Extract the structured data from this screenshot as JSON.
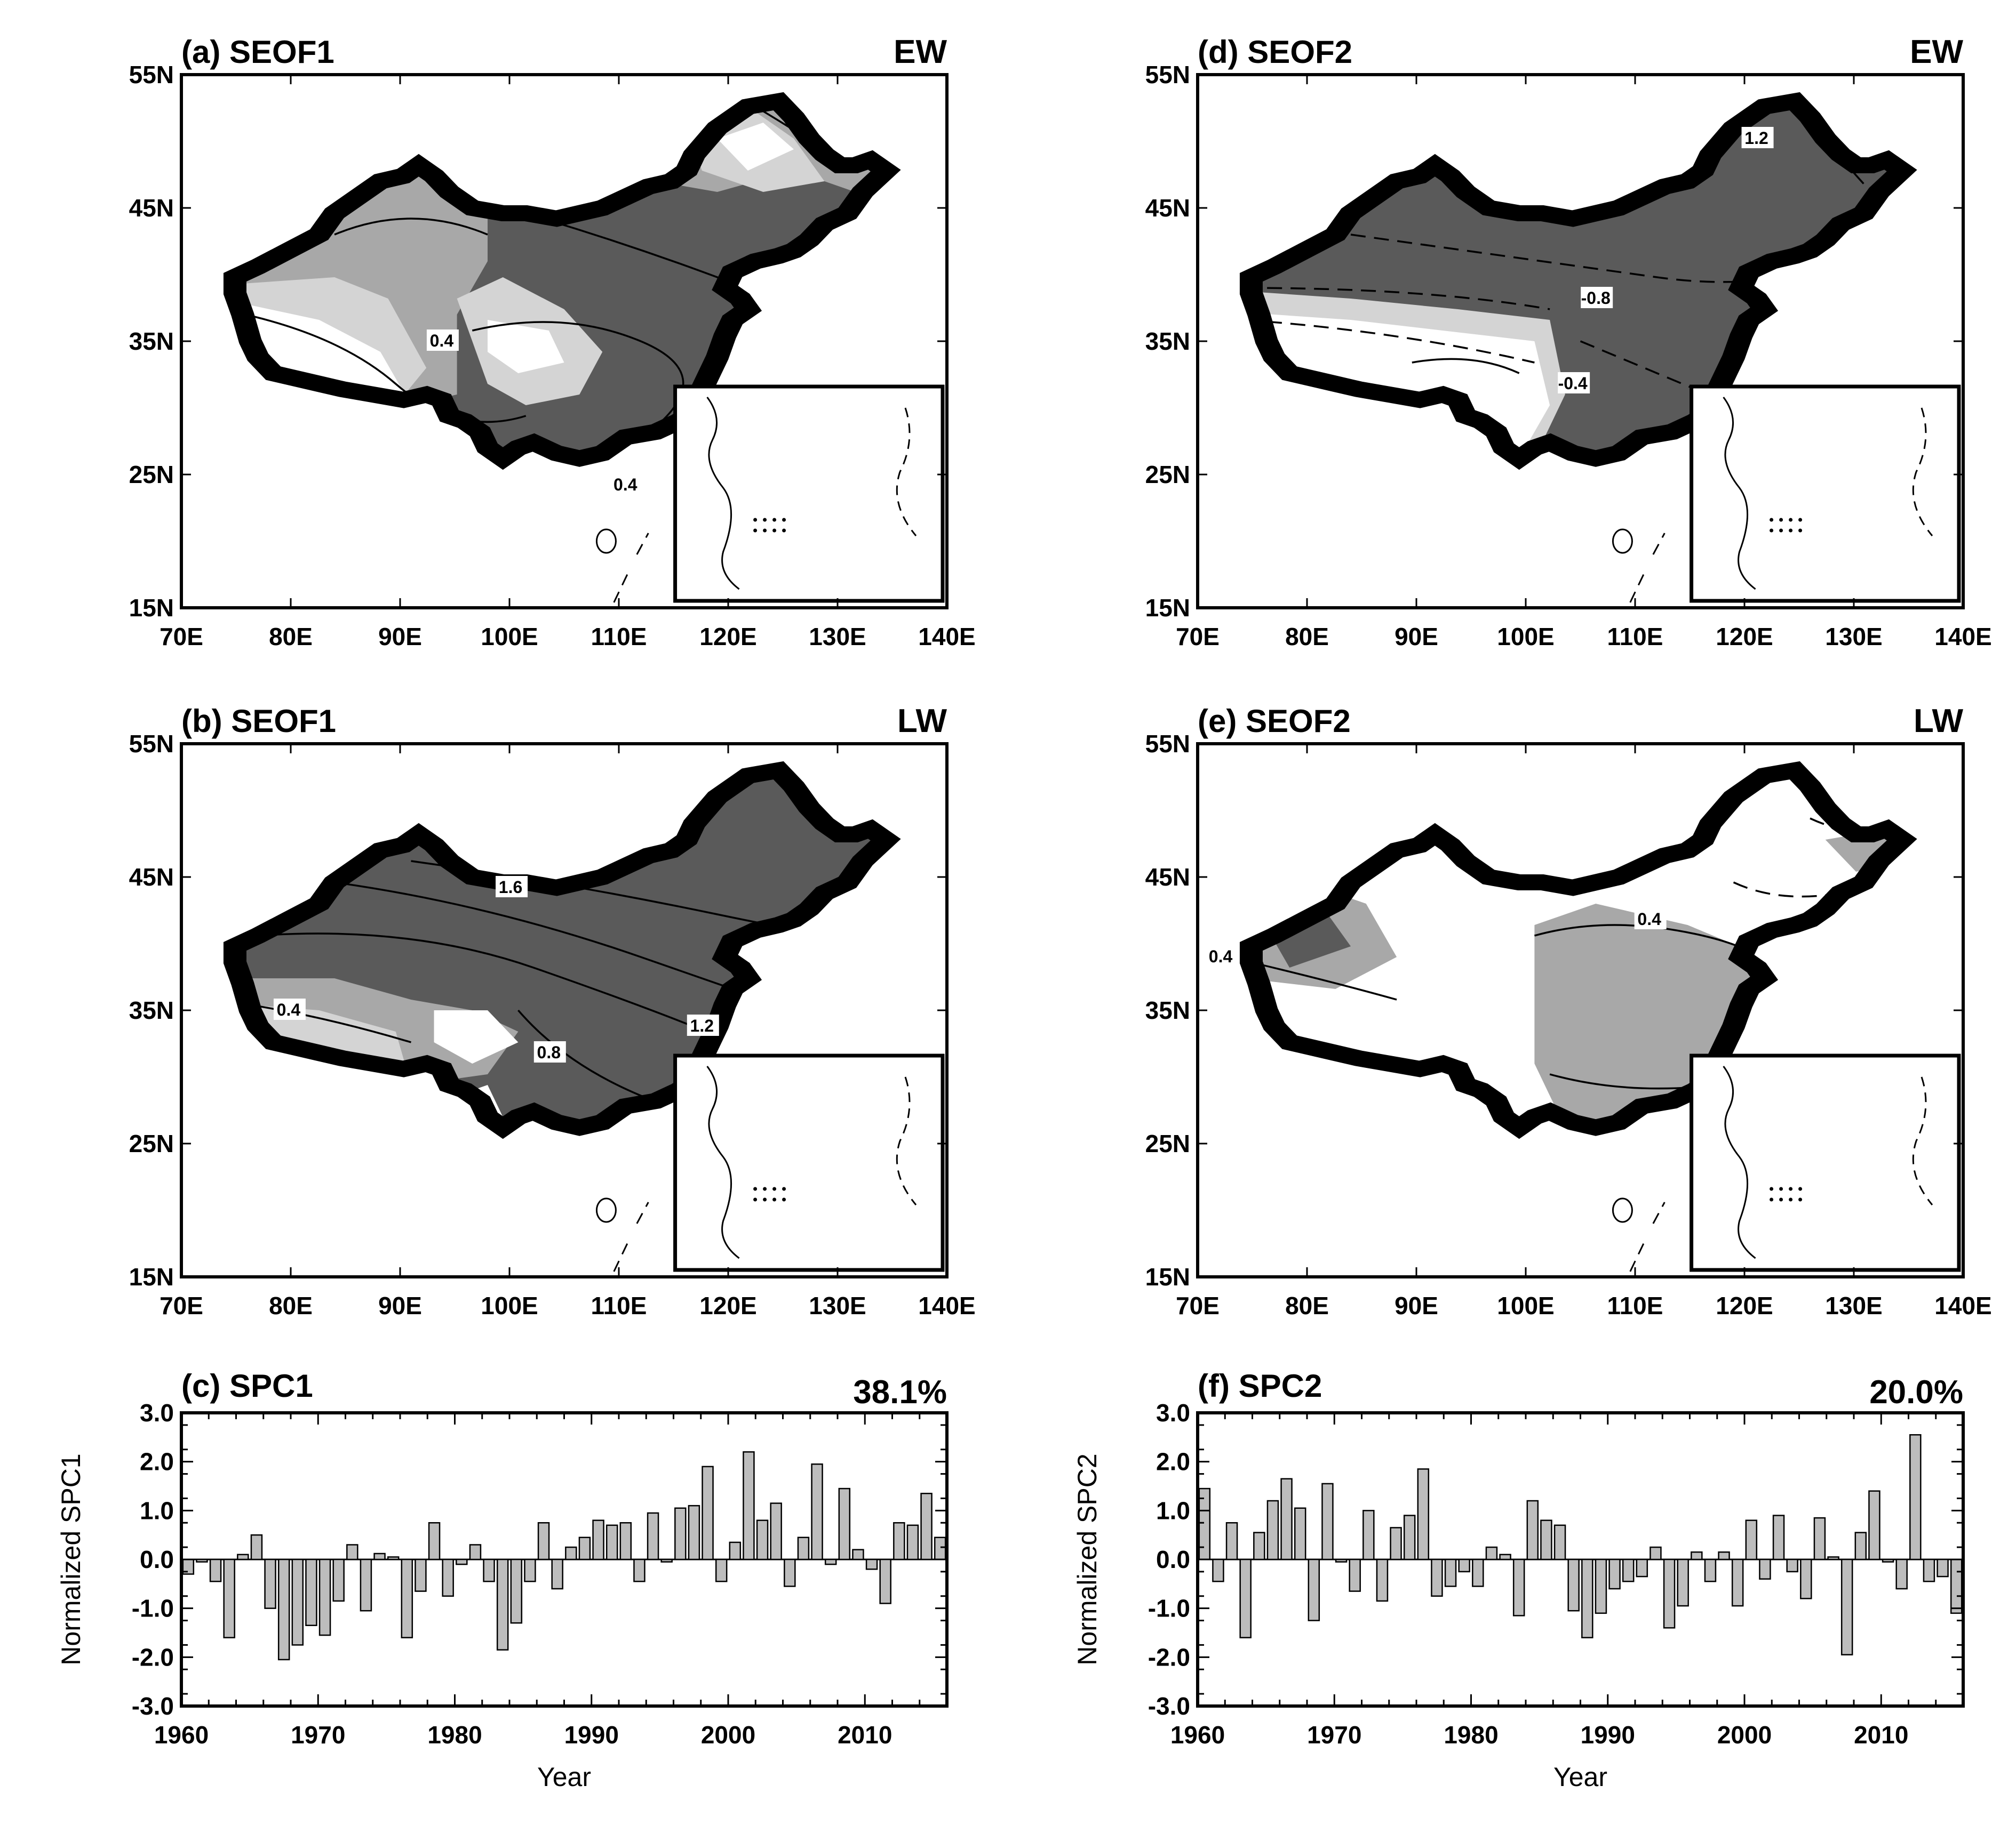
{
  "maps": [
    {
      "id": "a",
      "title": "(a) SEOF1",
      "corner": "EW",
      "style": "eof1-ew",
      "contour_labels": [
        "0.4",
        "0.4"
      ]
    },
    {
      "id": "b",
      "title": "(b) SEOF1",
      "corner": "LW",
      "style": "eof1-lw",
      "contour_labels": [
        "1.6",
        "0.4",
        "0.8",
        "1.2"
      ]
    },
    {
      "id": "d",
      "title": "(d) SEOF2",
      "corner": "EW",
      "style": "eof2-ew",
      "contour_labels": [
        "1.2",
        "-0.8",
        "-0.4"
      ]
    },
    {
      "id": "e",
      "title": "(e) SEOF2",
      "corner": "LW",
      "style": "eof2-lw",
      "contour_labels": [
        "0.4",
        "0.4"
      ]
    }
  ],
  "map_axes": {
    "lon_ticks": [
      "70E",
      "80E",
      "90E",
      "100E",
      "110E",
      "120E",
      "130E",
      "140E"
    ],
    "lat_ticks": [
      "55N",
      "45N",
      "35N",
      "25N",
      "15N"
    ],
    "lon_range": [
      70,
      140
    ],
    "lat_range": [
      15,
      55
    ]
  },
  "chart_data": [
    {
      "type": "bar",
      "title": "(c) SPC1",
      "corner_label": "38.1%",
      "xlabel": "Year",
      "ylabel": "Normalized SPC1",
      "ylim": [
        -3.0,
        3.0
      ],
      "yticks": [
        "3.0",
        "2.0",
        "1.0",
        "0.0",
        "-1.0",
        "-2.0",
        "-3.0"
      ],
      "xticks": [
        "1960",
        "1970",
        "1980",
        "1990",
        "2000",
        "2010"
      ],
      "x_start": 1960,
      "values": [
        -0.3,
        -0.05,
        -0.45,
        -1.6,
        0.1,
        0.5,
        -1.0,
        -2.05,
        -1.75,
        -1.35,
        -1.55,
        -0.85,
        0.3,
        -1.05,
        0.12,
        0.05,
        -1.6,
        -0.65,
        0.75,
        -0.75,
        -0.1,
        0.3,
        -0.45,
        -1.85,
        -1.3,
        -0.45,
        0.75,
        -0.6,
        0.25,
        0.45,
        0.8,
        0.7,
        0.75,
        -0.45,
        0.95,
        -0.05,
        1.05,
        1.1,
        1.9,
        -0.45,
        0.35,
        2.2,
        0.8,
        1.15,
        -0.55,
        0.45,
        1.95,
        -0.1,
        1.45,
        0.2,
        -0.2,
        -0.9,
        0.75,
        0.7,
        1.35,
        0.45
      ]
    },
    {
      "type": "bar",
      "title": "(f) SPC2",
      "corner_label": "20.0%",
      "xlabel": "Year",
      "ylabel": "Normalized SPC2",
      "ylim": [
        -3.0,
        3.0
      ],
      "yticks": [
        "3.0",
        "2.0",
        "1.0",
        "0.0",
        "-1.0",
        "-2.0",
        "-3.0"
      ],
      "xticks": [
        "1960",
        "1970",
        "1980",
        "1990",
        "2000",
        "2010"
      ],
      "x_start": 1960,
      "values": [
        1.45,
        -0.45,
        0.75,
        -1.6,
        0.55,
        1.2,
        1.65,
        1.05,
        -1.25,
        1.55,
        -0.05,
        -0.65,
        1.0,
        -0.85,
        0.65,
        0.9,
        1.85,
        -0.75,
        -0.55,
        -0.25,
        -0.55,
        0.25,
        0.1,
        -1.15,
        1.2,
        0.8,
        0.7,
        -1.05,
        -1.6,
        -1.1,
        -0.6,
        -0.45,
        -0.35,
        0.25,
        -1.4,
        -0.95,
        0.15,
        -0.45,
        0.15,
        -0.95,
        0.8,
        -0.4,
        0.9,
        -0.25,
        -0.8,
        0.85,
        0.05,
        -1.95,
        0.55,
        1.4,
        -0.05,
        -0.6,
        2.55,
        -0.45,
        -0.35,
        -1.1
      ]
    }
  ]
}
